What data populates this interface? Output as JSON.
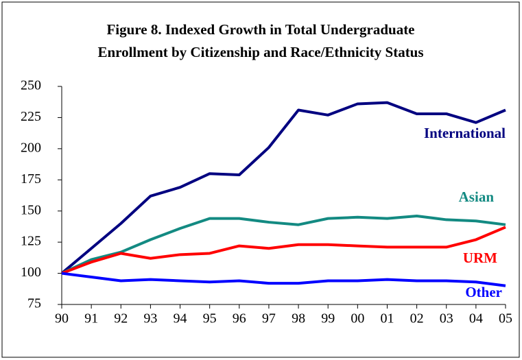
{
  "chart_data": {
    "type": "line",
    "title": [
      "Figure 8. Indexed Growth in Total Undergraduate",
      "Enrollment by Citizenship and Race/Ethnicity Status"
    ],
    "categories": [
      "90",
      "91",
      "92",
      "93",
      "94",
      "95",
      "96",
      "97",
      "98",
      "99",
      "00",
      "01",
      "02",
      "03",
      "04",
      "05"
    ],
    "series": [
      {
        "name": "International",
        "color": "#000080",
        "values": [
          100,
          120,
          140,
          162,
          169,
          180,
          179,
          201,
          231,
          227,
          236,
          237,
          228,
          228,
          221,
          231
        ]
      },
      {
        "name": "Asian",
        "color": "#138a82",
        "values": [
          100,
          111,
          117,
          127,
          136,
          144,
          144,
          141,
          139,
          144,
          145,
          144,
          146,
          143,
          142,
          139
        ]
      },
      {
        "name": "URM",
        "color": "#ff0000",
        "values": [
          100,
          109,
          116,
          112,
          115,
          116,
          122,
          120,
          123,
          123,
          122,
          121,
          121,
          121,
          127,
          137
        ]
      },
      {
        "name": "Other",
        "color": "#0000ff",
        "values": [
          100,
          97,
          94,
          95,
          94,
          93,
          94,
          92,
          92,
          94,
          94,
          95,
          94,
          94,
          93,
          90
        ]
      }
    ],
    "ylim": [
      75,
      250
    ],
    "yticks": [
      75,
      100,
      125,
      150,
      175,
      200,
      225,
      250
    ],
    "grid": false
  }
}
